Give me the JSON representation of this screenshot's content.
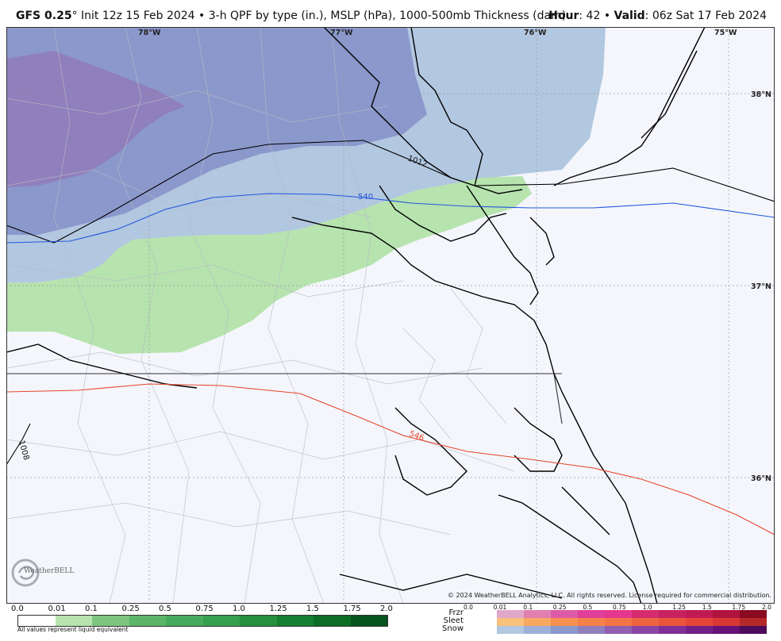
{
  "header": {
    "model": "GFS 0.25",
    "degree": "°",
    "description": " Init 12z 15 Feb 2024 • 3-h QPF by type (in.), MSLP (hPa), 1000-500mb Thickness (dam)",
    "hour_label": "Hour",
    "hour_value": ": 42 • ",
    "valid_label": "Valid",
    "valid_value": ": 06z Sat 17 Feb 2024"
  },
  "map": {
    "lon_labels": [
      "78°W",
      "77°W",
      "76°W",
      "75°W"
    ],
    "lat_labels": [
      "38°N",
      "37°N",
      "36°N"
    ],
    "isobar_labels": [
      "1012",
      "1008"
    ],
    "thickness_labels": [
      "540",
      "546"
    ],
    "colors": {
      "ocean": "#f4f6fc",
      "snow": "#b2c7e0",
      "snow_heavy": "#8b98cc",
      "snow_heaviest": "#8f7fbc",
      "rain_light": "#b6e3ae",
      "coast": "#000000",
      "isobar": "#000000",
      "thickness_540": "#2255dd",
      "thickness_546": "#e8452a",
      "counties": "#b8bcc6"
    }
  },
  "copyright": "© 2024 WeatherBELL Analytics, LLC. All rights reserved. License required for commercial distribution.",
  "logo": {
    "text": "WeatherBELL",
    "sub": "Analytics LLC"
  },
  "qpf_legend": {
    "ticks": [
      "0.0",
      "0.01",
      "0.1",
      "0.25",
      "0.5",
      "0.75",
      "1.0",
      "1.25",
      "1.5",
      "1.75",
      "2.0"
    ],
    "colors": [
      "#ffffff",
      "#b6e3ae",
      "#7fc57f",
      "#5bb56a",
      "#47a95d",
      "#35a050",
      "#25913f",
      "#167f31",
      "#0d6d27",
      "#06541d"
    ],
    "note": "All values represent liquid equivalent"
  },
  "ptype_legend": {
    "ticks": [
      "0.0",
      "0.01",
      "0.1",
      "0.25",
      "0.5",
      "0.75",
      "1.0",
      "1.25",
      "1.5",
      "1.75",
      "2.0"
    ],
    "rows": [
      {
        "label": "Frzr",
        "colors": [
          "#e0a8c8",
          "#e07fb0",
          "#de5aa6",
          "#e03f9a",
          "#e43790",
          "#d42c6e",
          "#c72160",
          "#c01a52",
          "#b0133e",
          "#8a0a22"
        ]
      },
      {
        "label": "Sleet",
        "colors": [
          "#f8c27a",
          "#f7a860",
          "#f6904f",
          "#f5804a",
          "#f37445",
          "#ef6440",
          "#ea553c",
          "#e44539",
          "#da3834",
          "#b52a28"
        ]
      },
      {
        "label": "Snow",
        "colors": [
          "#b2c7e0",
          "#9fb0d8",
          "#8b98cc",
          "#8f7fbc",
          "#8f5fb0",
          "#8a45a4",
          "#802f98",
          "#731f88",
          "#651276",
          "#4e0a5a"
        ]
      }
    ]
  }
}
